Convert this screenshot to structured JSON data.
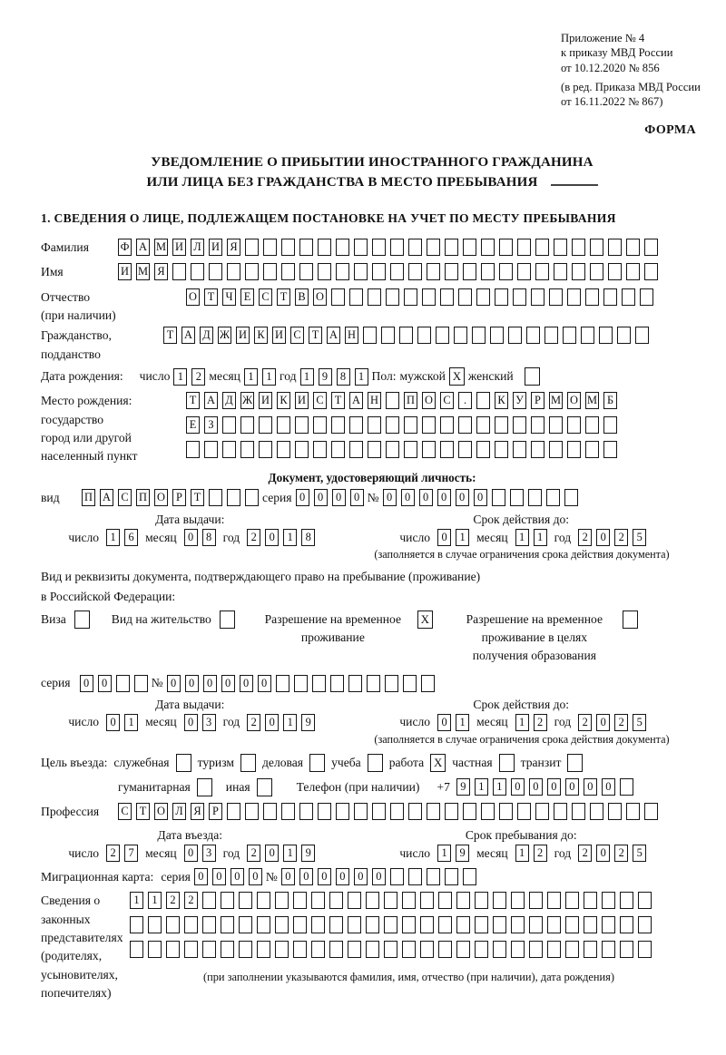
{
  "header": {
    "annex_lines": [
      "Приложение № 4",
      "к приказу МВД России",
      "от 10.12.2020 № 856"
    ],
    "revision_lines": [
      "(в ред. Приказа МВД России",
      "от 16.11.2022 № 867)"
    ],
    "form_label": "ФОРМА"
  },
  "title": {
    "line1": "УВЕДОМЛЕНИЕ О ПРИБЫТИИ ИНОСТРАННОГО ГРАЖДАНИНА",
    "line2": "ИЛИ ЛИЦА БЕЗ ГРАЖДАНСТВА В МЕСТО ПРЕБЫВАНИЯ"
  },
  "section1_heading": "1. СВЕДЕНИЯ О ЛИЦЕ, ПОДЛЕЖАЩЕМ ПОСТАНОВКЕ НА УЧЕТ ПО МЕСТУ ПРЕБЫВАНИЯ",
  "date_labels": {
    "day": "число",
    "month": "месяц",
    "year": "год"
  },
  "notes": {
    "expiry": "(заполняется в случае ограничения срока действия документа)"
  },
  "fields": {
    "surname": {
      "label": "Фамилия",
      "value": "ФАМИЛИЯ",
      "count": 30
    },
    "given_name": {
      "label": "Имя",
      "value": "ИМЯ",
      "count": 30
    },
    "patronymic": {
      "label_line1": "Отчество",
      "label_line2": "(при наличии)",
      "value": "ОТЧЕСТВО",
      "count": 26
    },
    "citizenship": {
      "label_line1": "Гражданство,",
      "label_line2": "подданство",
      "value": "ТАДЖИКИСТАН",
      "count": 27
    },
    "birth_date": {
      "label": "Дата рождения:",
      "day": {
        "value": "12",
        "count": 2
      },
      "month": {
        "value": "11",
        "count": 2
      },
      "year": {
        "value": "1981",
        "count": 4
      }
    },
    "sex": {
      "label": "Пол:",
      "male_label": "мужской",
      "male_checked": true,
      "female_label": "женский",
      "female_checked": false
    },
    "birth_place": {
      "label_lines": [
        "Место рождения:",
        "государство",
        "город или другой",
        "населенный пункт"
      ],
      "rows": [
        {
          "value": "ТАДЖИКИСТАН ПОС. КУРМОМБ",
          "count": 24
        },
        {
          "value": "ЕЗ",
          "count": 24
        },
        {
          "value": "",
          "count": 24
        }
      ]
    }
  },
  "id_doc": {
    "heading": "Документ, удостоверяющий личность:",
    "kind_label": "вид",
    "kind": {
      "value": "ПАСПОРТ",
      "count": 10
    },
    "series_label": "серия",
    "series": {
      "value": "0000",
      "count": 4
    },
    "number_label": "№",
    "number": {
      "value": "000000",
      "count": 11
    },
    "issue_heading": "Дата выдачи:",
    "issue": {
      "day": {
        "value": "16",
        "count": 2
      },
      "month": {
        "value": "08",
        "count": 2
      },
      "year": {
        "value": "2018",
        "count": 4
      }
    },
    "expiry_heading": "Срок действия до:",
    "expiry": {
      "day": {
        "value": "01",
        "count": 2
      },
      "month": {
        "value": "11",
        "count": 2
      },
      "year": {
        "value": "2025",
        "count": 4
      }
    }
  },
  "residence_doc": {
    "intro_line1": "Вид и реквизиты документа, подтверждающего право на пребывание (проживание)",
    "intro_line2": "в Российской Федерации:",
    "options": [
      {
        "label": "Виза",
        "checked": false
      },
      {
        "label": "Вид на жительство",
        "checked": false
      },
      {
        "label": "Разрешение на временное проживание",
        "checked": true
      },
      {
        "label": "Разрешение на временное проживание в целях получения образования",
        "checked": false
      }
    ],
    "series_label": "серия",
    "series": {
      "value": "00",
      "count": 4
    },
    "number_label": "№",
    "number": {
      "value": "000000",
      "count": 15
    },
    "issue_heading": "Дата выдачи:",
    "issue": {
      "day": {
        "value": "01",
        "count": 2
      },
      "month": {
        "value": "03",
        "count": 2
      },
      "year": {
        "value": "2019",
        "count": 4
      }
    },
    "expiry_heading": "Срок действия до:",
    "expiry": {
      "day": {
        "value": "01",
        "count": 2
      },
      "month": {
        "value": "12",
        "count": 2
      },
      "year": {
        "value": "2025",
        "count": 4
      }
    }
  },
  "entry": {
    "purpose_label": "Цель въезда:",
    "purposes_row1": [
      {
        "label": "служебная",
        "checked": false
      },
      {
        "label": "туризм",
        "checked": false
      },
      {
        "label": "деловая",
        "checked": false
      },
      {
        "label": "учеба",
        "checked": false
      },
      {
        "label": "работа",
        "checked": true
      },
      {
        "label": "частная",
        "checked": false
      },
      {
        "label": "транзит",
        "checked": false
      }
    ],
    "purposes_row2": [
      {
        "label": "гуманитарная",
        "checked": false
      },
      {
        "label": "иная",
        "checked": false
      }
    ],
    "phone_label": "Телефон (при наличии)",
    "phone_prefix": "+7",
    "phone": {
      "value": "911000000",
      "count": 10
    },
    "profession_label": "Профессия",
    "profession": {
      "value": "СТОЛЯР",
      "count": 30
    },
    "entry_date_heading": "Дата въезда:",
    "entry_date": {
      "day": {
        "value": "27",
        "count": 2
      },
      "month": {
        "value": "03",
        "count": 2
      },
      "year": {
        "value": "2019",
        "count": 4
      }
    },
    "stay_until_heading": "Срок пребывания до:",
    "stay_until": {
      "day": {
        "value": "19",
        "count": 2
      },
      "month": {
        "value": "12",
        "count": 2
      },
      "year": {
        "value": "2025",
        "count": 4
      }
    }
  },
  "migration_card": {
    "label": "Миграционная карта:",
    "series_label": "серия",
    "series": {
      "value": "0000",
      "count": 4
    },
    "number_label": "№",
    "number": {
      "value": "000000",
      "count": 11
    }
  },
  "representatives": {
    "label_lines": [
      "Сведения о",
      "законных",
      "представителях",
      "(родителях,",
      "усыновителях,",
      "попечителях)"
    ],
    "rows": [
      {
        "value": "1122",
        "count": 29
      },
      {
        "value": "",
        "count": 29
      },
      {
        "value": "",
        "count": 29
      }
    ],
    "note": "(при заполнении указываются фамилия, имя, отчество (при наличии), дата рождения)"
  }
}
